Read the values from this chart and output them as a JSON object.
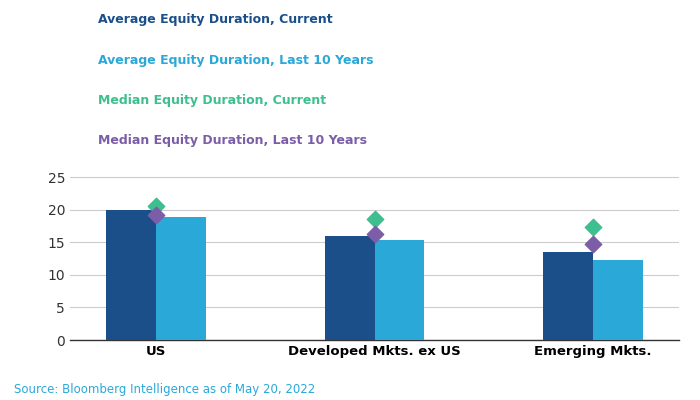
{
  "categories": [
    "US",
    "Developed Mkts. ex US",
    "Emerging Mkts."
  ],
  "avg_current": [
    20.0,
    16.0,
    13.5
  ],
  "avg_last10": [
    18.8,
    15.3,
    12.2
  ],
  "median_current": [
    20.5,
    18.5,
    17.3
  ],
  "median_last10": [
    19.2,
    16.3,
    14.8
  ],
  "bar_color_current": "#1a4f8a",
  "bar_color_last10": "#2aa8d8",
  "marker_color_median_current": "#3dbf8f",
  "marker_color_median_last10": "#7b5ea7",
  "legend_labels": [
    "Average Equity Duration, Current",
    "Average Equity Duration, Last 10 Years",
    "Median Equity Duration, Current",
    "Median Equity Duration, Last 10 Years"
  ],
  "legend_colors": [
    "#1a4f8a",
    "#2aa8d8",
    "#3dbf8f",
    "#7b5ea7"
  ],
  "ylim": [
    0,
    27
  ],
  "yticks": [
    0,
    5,
    10,
    15,
    20,
    25
  ],
  "source_text": "Source: Bloomberg Intelligence as of May 20, 2022",
  "source_color": "#2aa8d8",
  "background_color": "#ffffff",
  "bar_width": 0.32
}
